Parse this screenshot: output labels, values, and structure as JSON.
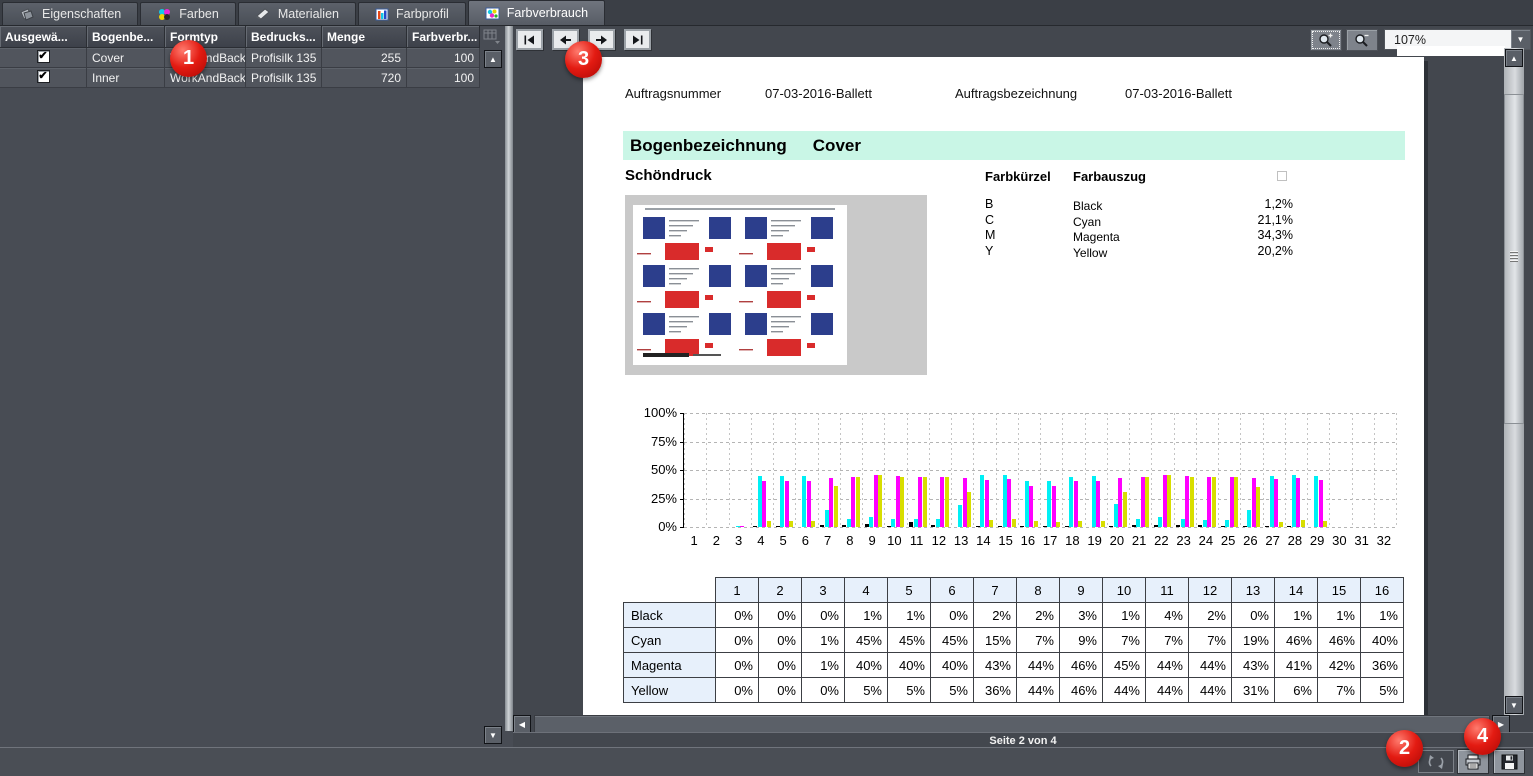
{
  "tabs": [
    {
      "label": "Eigenschaften",
      "active": false
    },
    {
      "label": "Farben",
      "active": false
    },
    {
      "label": "Materialien",
      "active": false
    },
    {
      "label": "Farbprofil",
      "active": false
    },
    {
      "label": "Farbverbrauch",
      "active": true
    }
  ],
  "sheet_grid": {
    "headers": [
      "Ausgewä...",
      "Bogenbe...",
      "Formtyp",
      "Bedrucks...",
      "Menge",
      "Farbverbr..."
    ],
    "rows": [
      {
        "selected": true,
        "sheet": "Cover",
        "formtyp": "WorkAndBack",
        "material": "Profisilk 135",
        "menge": "255",
        "farbverbrauch": "100"
      },
      {
        "selected": true,
        "sheet": "Inner",
        "formtyp": "WorkAndBack",
        "material": "Profisilk 135",
        "menge": "720",
        "farbverbrauch": "100"
      }
    ]
  },
  "preview": {
    "zoom_level": "107%",
    "page_status": "Seite 2 von 4"
  },
  "report": {
    "order_number_label": "Auftragsnummer",
    "order_number": "07-03-2016-Ballett",
    "order_name_label": "Auftragsbezeichnung",
    "order_name": "07-03-2016-Ballett",
    "sheet_section_label": "Bogenbezeichnung",
    "sheet_section_value": "Cover",
    "print_side": "Schöndruck",
    "separation_table": {
      "col1": "Farbkürzel",
      "col2": "Farbauszug",
      "rows": [
        {
          "code": "B",
          "name": "Black",
          "coverage": "1,2%"
        },
        {
          "code": "C",
          "name": "Cyan",
          "coverage": "21,1%"
        },
        {
          "code": "M",
          "name": "Magenta",
          "coverage": "34,3%"
        },
        {
          "code": "Y",
          "name": "Yellow",
          "coverage": "20,2%"
        }
      ]
    }
  },
  "chart_data": {
    "type": "bar",
    "title": "",
    "xlabel": "",
    "ylabel": "",
    "ylim": [
      0,
      100
    ],
    "grid": true,
    "ytick_labels": [
      "100%",
      "75%",
      "50%",
      "25%",
      "0%"
    ],
    "categories": [
      1,
      2,
      3,
      4,
      5,
      6,
      7,
      8,
      9,
      10,
      11,
      12,
      13,
      14,
      15,
      16,
      17,
      18,
      19,
      20,
      21,
      22,
      23,
      24,
      25,
      26,
      27,
      28,
      29,
      30,
      31,
      32
    ],
    "series": [
      {
        "name": "Black",
        "color": "#000000",
        "values": [
          0,
          0,
          0,
          1,
          1,
          0,
          2,
          2,
          3,
          1,
          4,
          2,
          0,
          1,
          1,
          1,
          1,
          1,
          0,
          1,
          2,
          2,
          2,
          2,
          1,
          1,
          1,
          1,
          0,
          0,
          0,
          0
        ]
      },
      {
        "name": "Cyan",
        "color": "#00f0f5",
        "values": [
          0,
          0,
          1,
          45,
          45,
          45,
          15,
          7,
          9,
          7,
          7,
          7,
          19,
          46,
          46,
          40,
          40,
          44,
          45,
          20,
          7,
          9,
          7,
          6,
          6,
          15,
          45,
          46,
          45,
          0,
          0,
          0
        ]
      },
      {
        "name": "Magenta",
        "color": "#ff00ff",
        "values": [
          0,
          0,
          1,
          40,
          40,
          40,
          43,
          44,
          46,
          45,
          44,
          44,
          43,
          41,
          42,
          36,
          36,
          40,
          40,
          43,
          44,
          46,
          45,
          44,
          44,
          43,
          42,
          43,
          41,
          0,
          0,
          0
        ]
      },
      {
        "name": "Yellow",
        "color": "#d8de00",
        "values": [
          0,
          0,
          0,
          5,
          5,
          5,
          36,
          44,
          46,
          44,
          44,
          44,
          31,
          6,
          7,
          5,
          4,
          5,
          5,
          31,
          44,
          46,
          44,
          44,
          44,
          35,
          4,
          6,
          5,
          0,
          0,
          0
        ]
      }
    ],
    "zone_table": {
      "columns": [
        "1",
        "2",
        "3",
        "4",
        "5",
        "6",
        "7",
        "8",
        "9",
        "10",
        "11",
        "12",
        "13",
        "14",
        "15",
        "16"
      ],
      "rows": [
        {
          "label": "Black",
          "values": [
            0,
            0,
            0,
            1,
            1,
            0,
            2,
            2,
            3,
            1,
            4,
            2,
            0,
            1,
            1,
            1
          ]
        },
        {
          "label": "Cyan",
          "values": [
            0,
            0,
            1,
            45,
            45,
            45,
            15,
            7,
            9,
            7,
            7,
            7,
            19,
            46,
            46,
            40
          ]
        },
        {
          "label": "Magenta",
          "values": [
            0,
            0,
            1,
            40,
            40,
            40,
            43,
            44,
            46,
            45,
            44,
            44,
            43,
            41,
            42,
            36
          ]
        },
        {
          "label": "Yellow",
          "values": [
            0,
            0,
            0,
            5,
            5,
            5,
            36,
            44,
            46,
            44,
            44,
            44,
            31,
            6,
            7,
            5
          ]
        }
      ]
    }
  },
  "badges": {
    "b1": "1",
    "b2": "2",
    "b3": "3",
    "b4": "4"
  },
  "colors": {
    "section_band": "#c9f6e6",
    "zone_header_bg": "#e7f0fb",
    "cyan": "#00f0f5",
    "magenta": "#ff00ff",
    "yellow": "#d8de00",
    "black": "#000000"
  }
}
